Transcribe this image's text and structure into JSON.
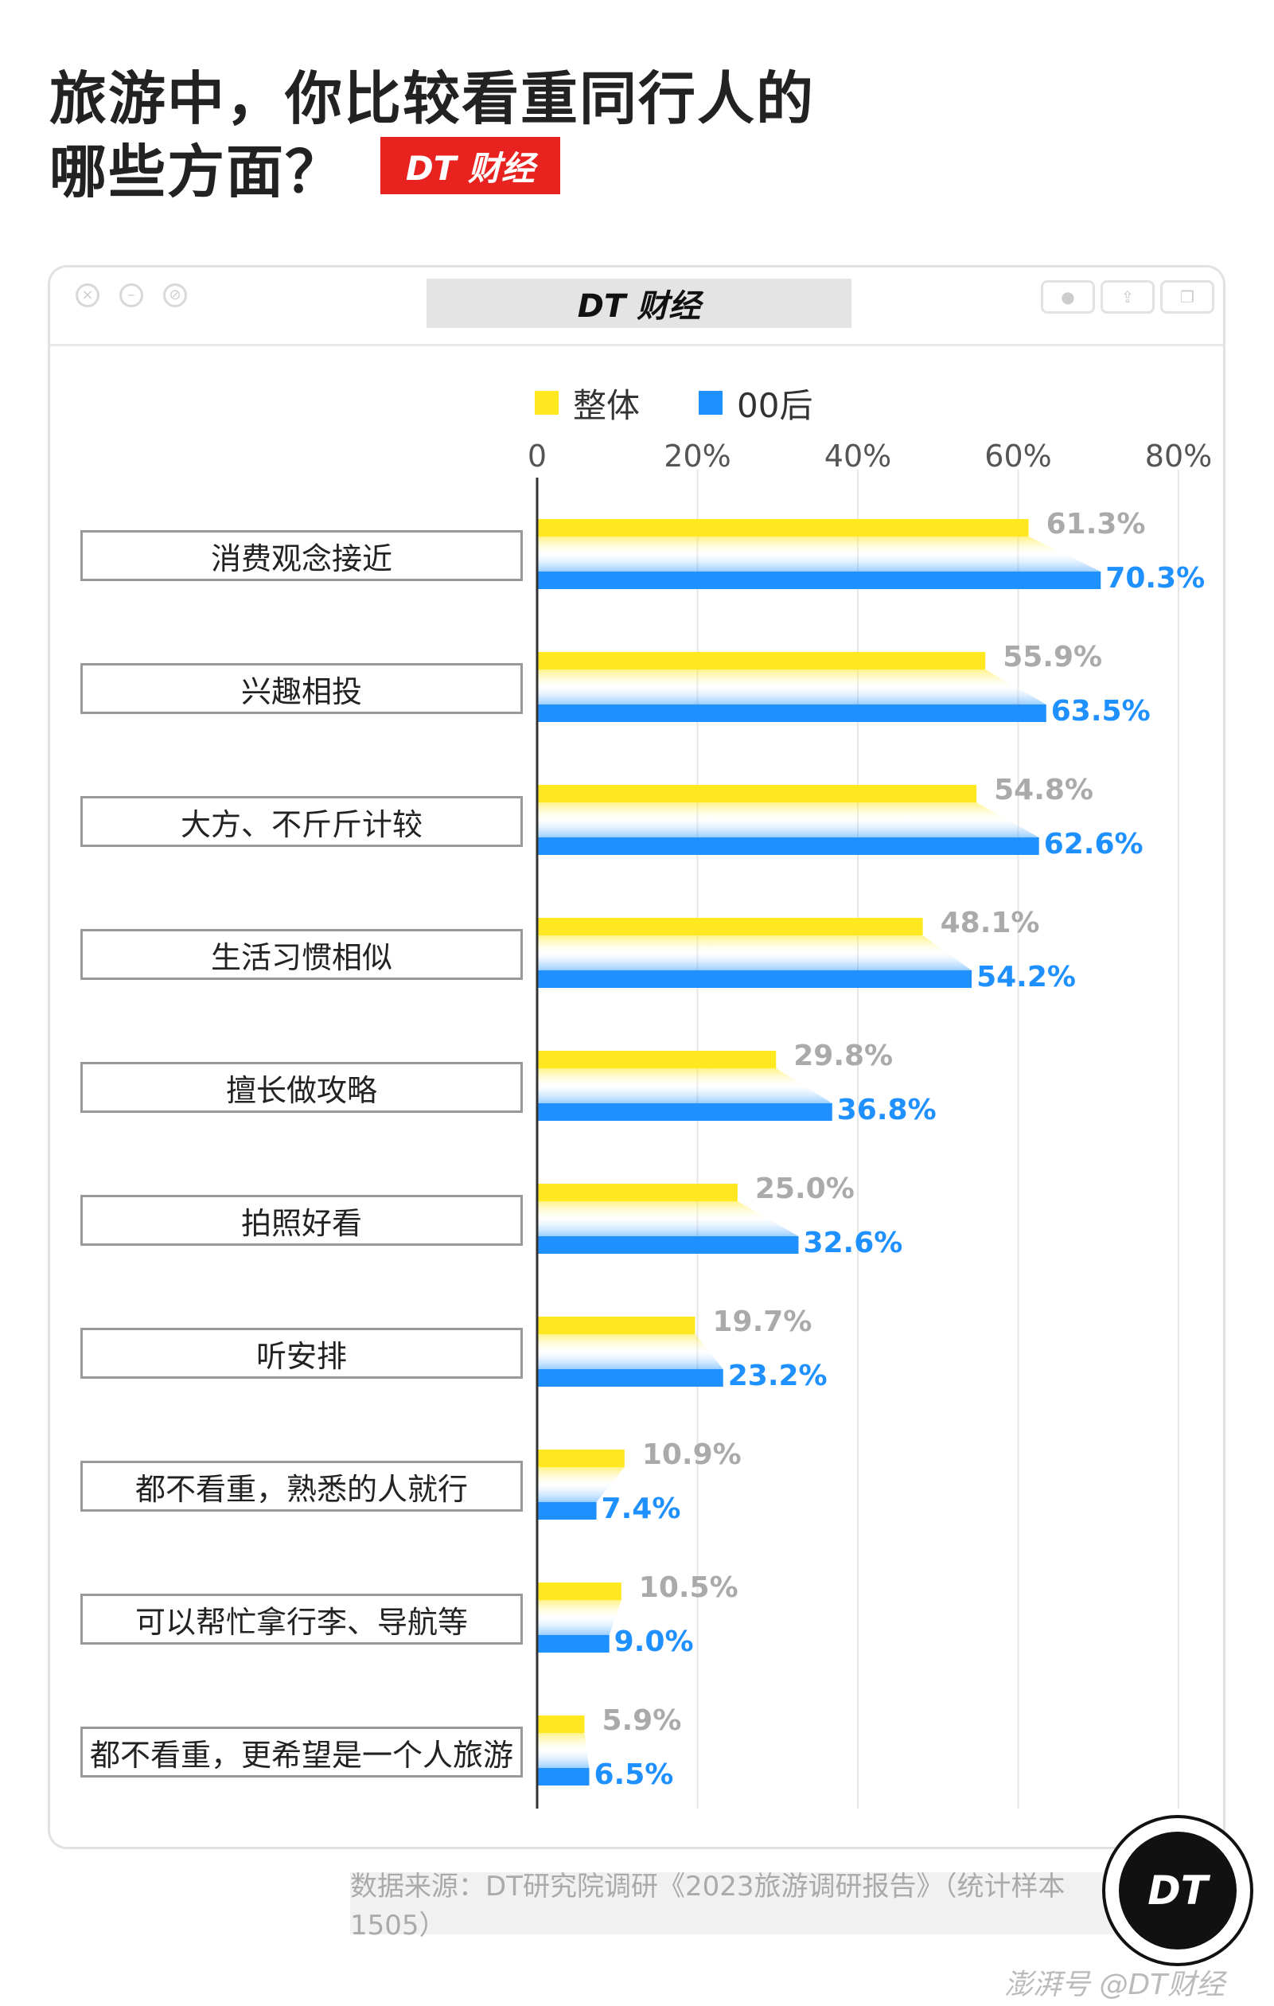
{
  "title": {
    "line1": "旅游中，你比较看重同行人的",
    "line2": "哪些方面？"
  },
  "brand_tag": "DT 财经",
  "window_title": "DT 财经",
  "source": "数据来源：DT研究院调研《2023旅游调研报告》（统计样本1505）",
  "badge_text": "DT",
  "footer_credit": "澎湃号 @DT财经",
  "colors": {
    "overall": "#ffe81f",
    "gen00": "#1e90ff",
    "overall_label": "#aaaaaa",
    "gen00_label": "#1e90ff",
    "title_tag": "#e8231f"
  },
  "chart_data": {
    "type": "bar",
    "orientation": "horizontal",
    "categories": [
      "消费观念接近",
      "兴趣相投",
      "大方、不斤斤计较",
      "生活习惯相似",
      "擅长做攻略",
      "拍照好看",
      "听安排",
      "都不看重，熟悉的人就行",
      "可以帮忙拿行李、导航等",
      "都不看重，更希望是一个人旅游"
    ],
    "series": [
      {
        "name": "整体",
        "values": [
          61.3,
          55.9,
          54.8,
          48.1,
          29.8,
          25.0,
          19.7,
          10.9,
          10.5,
          5.9
        ],
        "labels": [
          "61.3%",
          "55.9%",
          "54.8%",
          "48.1%",
          "29.8%",
          "25.0%",
          "19.7%",
          "10.9%",
          "10.5%",
          "5.9%"
        ]
      },
      {
        "name": "00后",
        "values": [
          70.3,
          63.5,
          62.6,
          54.2,
          36.8,
          32.6,
          23.2,
          7.4,
          9.0,
          6.5
        ],
        "labels": [
          "70.3%",
          "63.5%",
          "62.6%",
          "54.2%",
          "36.8%",
          "32.6%",
          "23.2%",
          "7.4%",
          "9.0%",
          "6.5%"
        ]
      }
    ],
    "x_ticks": [
      "0",
      "20%",
      "40%",
      "60%",
      "80%"
    ],
    "xlim": [
      0,
      80
    ],
    "grid": true,
    "legend": "top"
  }
}
